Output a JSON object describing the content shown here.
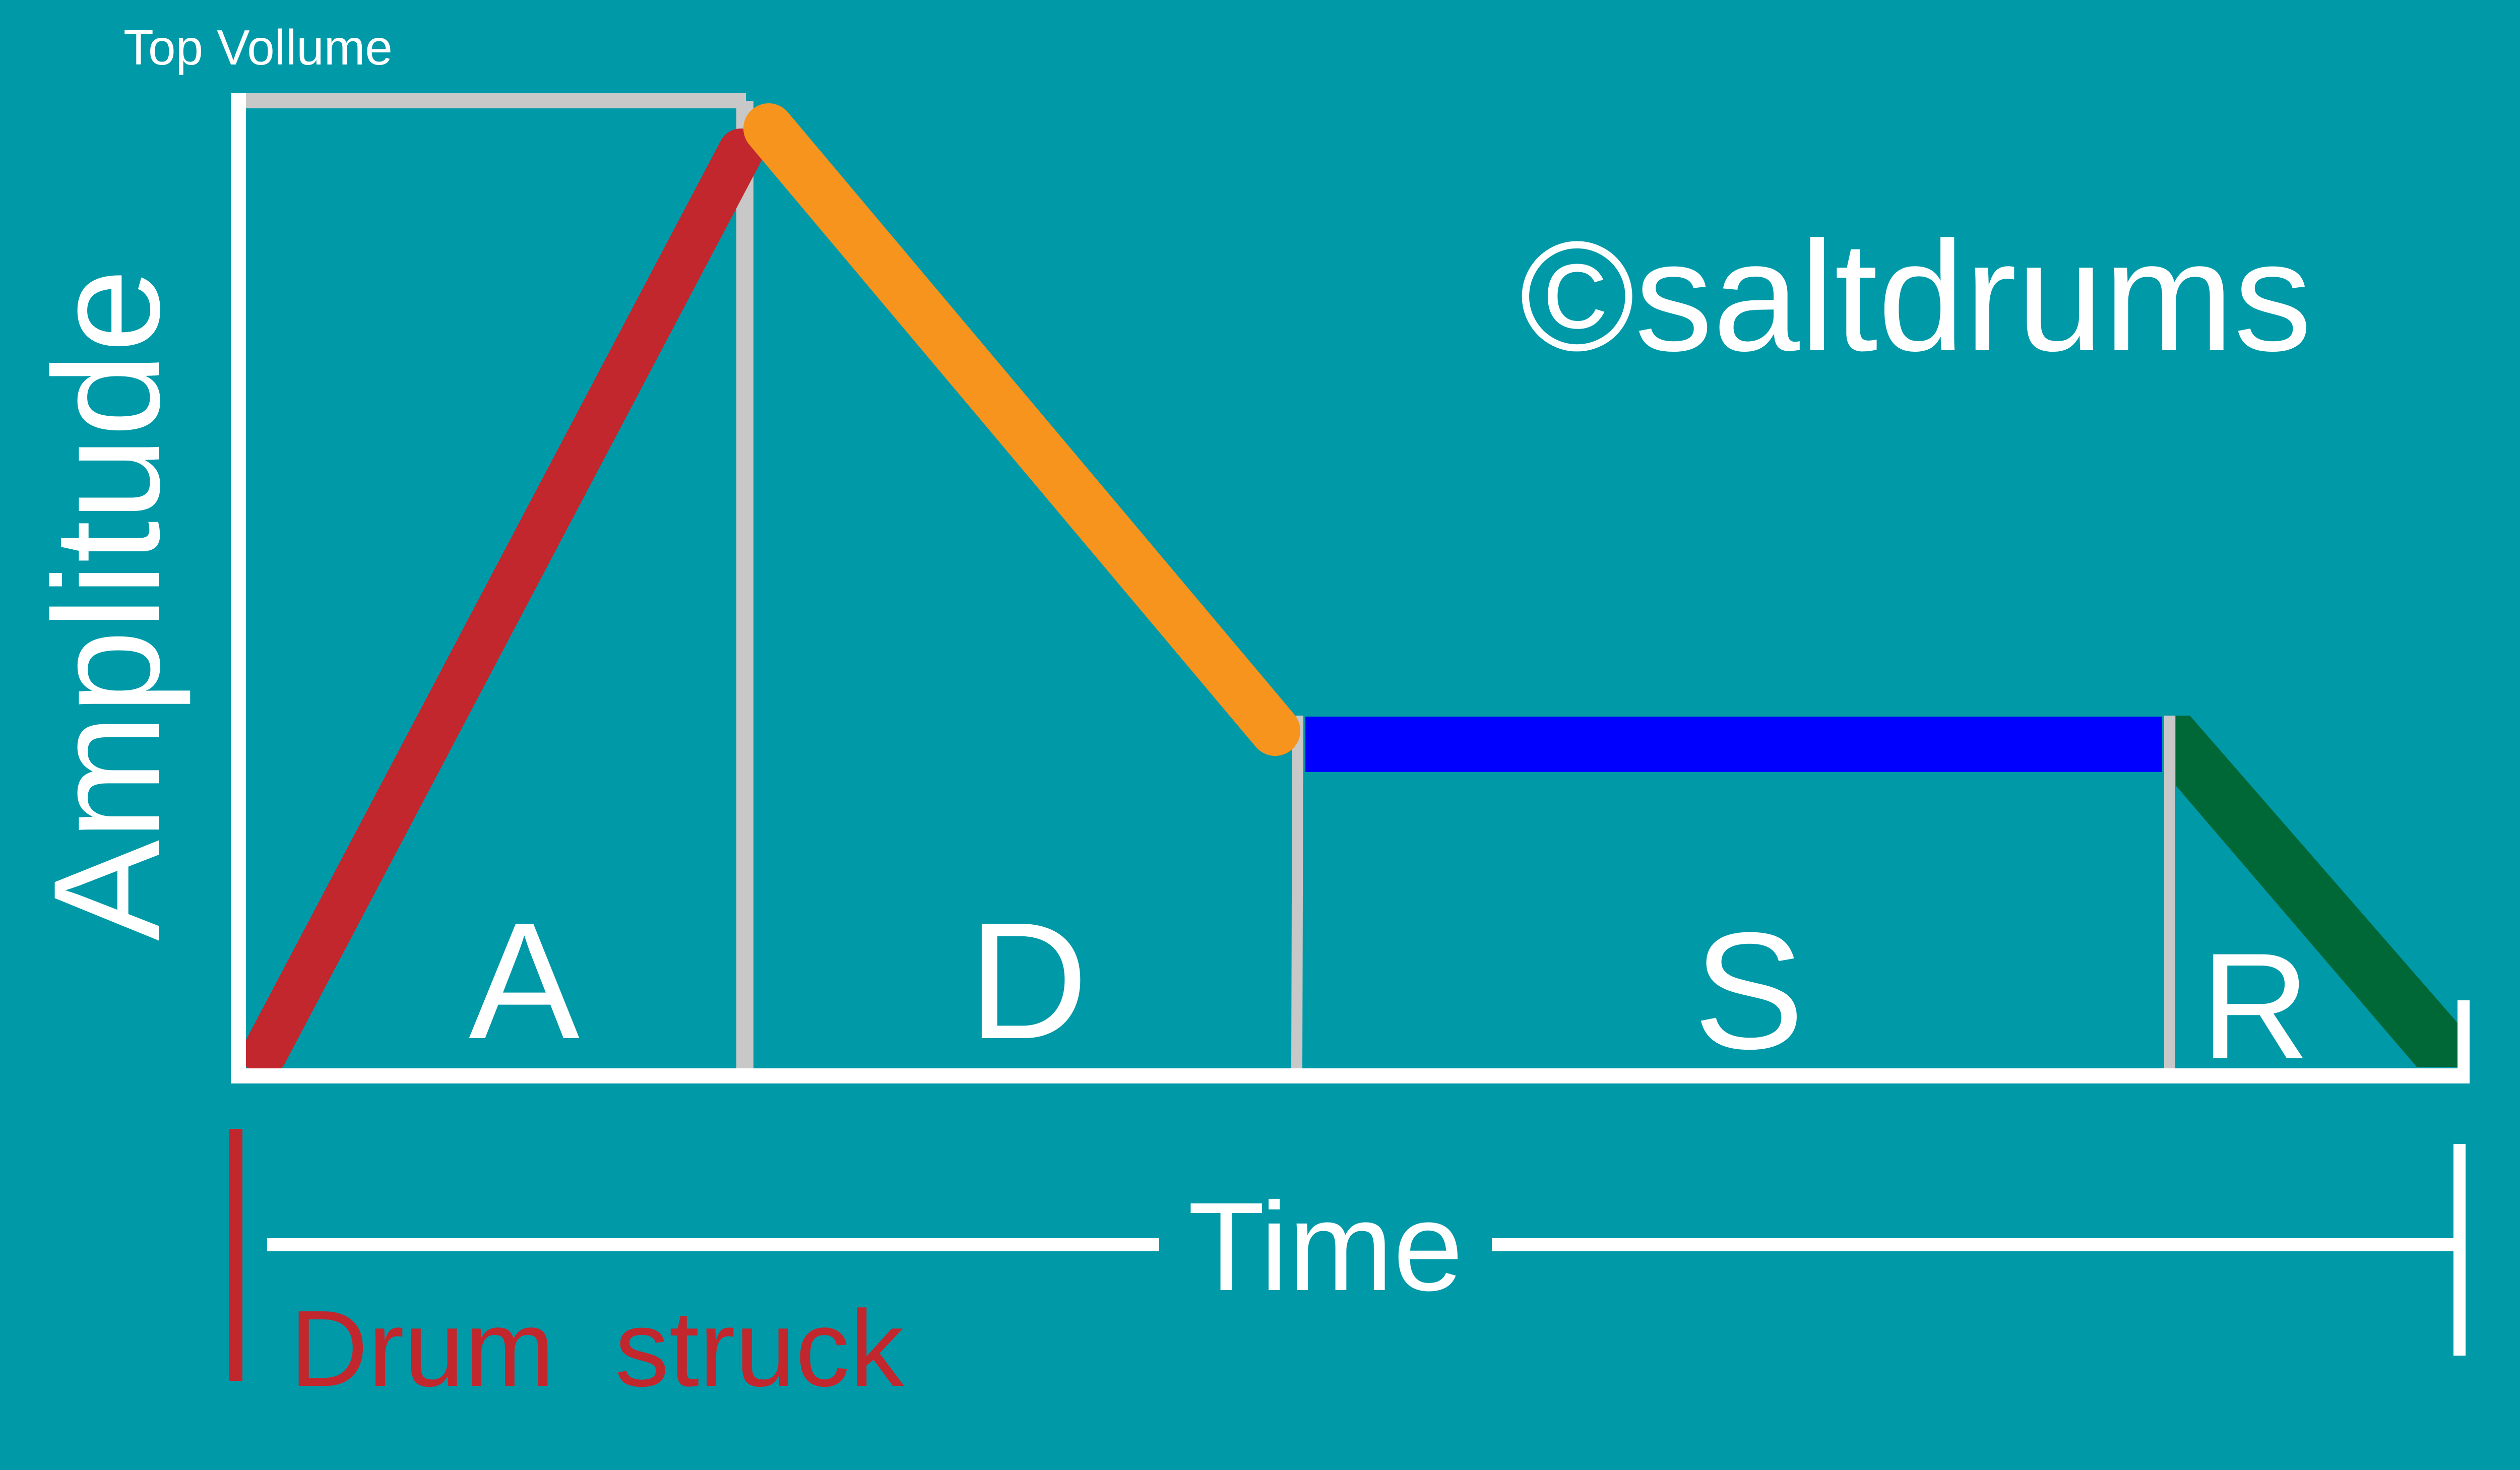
{
  "labels": {
    "top_volume": "Top Vollume",
    "amplitude": "Amplitude",
    "time": "Time",
    "drum_struck": "Drum  struck",
    "watermark": "©saltdrums"
  },
  "phases": [
    {
      "key": "attack",
      "letter": "A",
      "color": "#c1272d"
    },
    {
      "key": "decay",
      "letter": "D",
      "color": "#f7941d"
    },
    {
      "key": "sustain",
      "letter": "S",
      "color": "#0000ff"
    },
    {
      "key": "release",
      "letter": "R",
      "color": "#006837"
    }
  ],
  "colors": {
    "background": "#0099a8",
    "axis": "#ffffff",
    "divider": "#c8c8c8",
    "drum_struck": "#c1272d"
  }
}
